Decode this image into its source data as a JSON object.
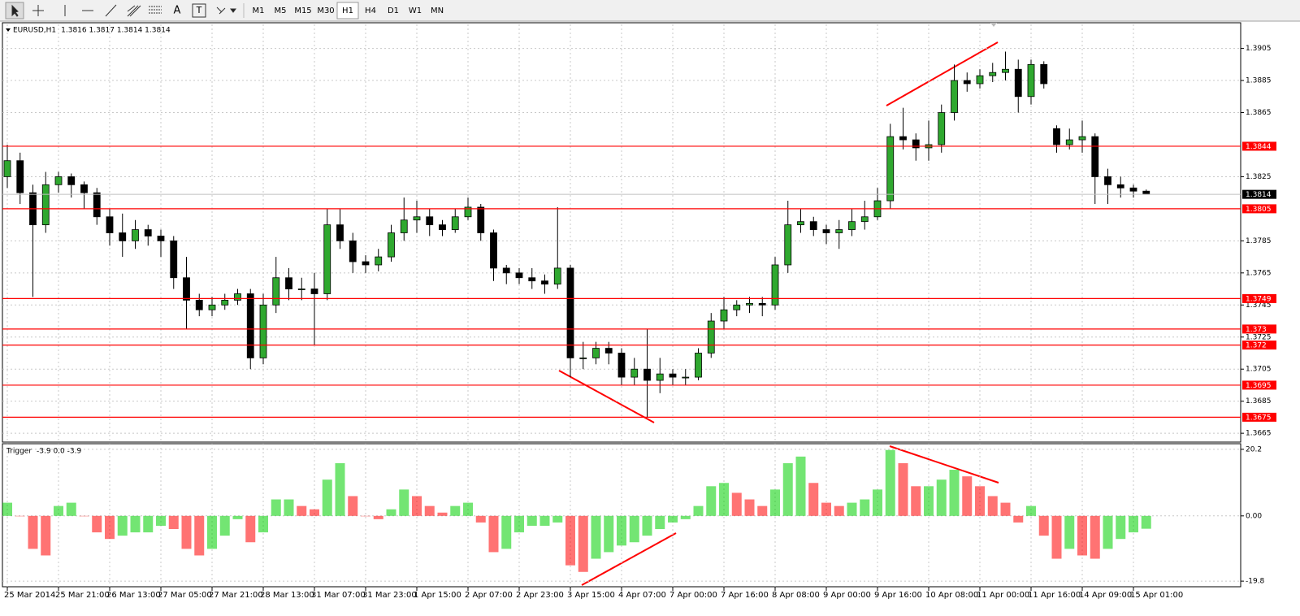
{
  "toolbar": {
    "text_tool": "A",
    "label_tool": "T",
    "timeframes": [
      "M1",
      "M5",
      "M15",
      "M30",
      "H1",
      "H4",
      "D1",
      "W1",
      "MN"
    ]
  },
  "chart_data": [
    {
      "type": "candlestick",
      "title": "EURUSD,H1",
      "header_text": "1.3816 1.3817 1.3814 1.3814",
      "time_labels": [
        "25 Mar 2014",
        "25 Mar 21:00",
        "26 Mar 13:00",
        "27 Mar 05:00",
        "27 Mar 21:00",
        "28 Mar 13:00",
        "31 Mar 07:00",
        "31 Mar 23:00",
        "1 Apr 15:00",
        "2 Apr 07:00",
        "2 Apr 23:00",
        "3 Apr 15:00",
        "4 Apr 07:00",
        "7 Apr 00:00",
        "7 Apr 16:00",
        "8 Apr 08:00",
        "9 Apr 00:00",
        "9 Apr 16:00",
        "10 Apr 08:00",
        "11 Apr 00:00",
        "11 Apr 16:00",
        "14 Apr 09:00",
        "15 Apr 01:00"
      ],
      "open": [
        1.3825,
        1.3835,
        1.3815,
        1.3795,
        1.382,
        1.3825,
        1.382,
        1.3815,
        1.38,
        1.379,
        1.3785,
        1.3792,
        1.3788,
        1.3785,
        1.3762,
        1.3748,
        1.3742,
        1.3745,
        1.3748,
        1.3752,
        1.3712,
        1.3745,
        1.3762,
        1.3755,
        1.3755,
        1.3752,
        1.3795,
        1.3785,
        1.3772,
        1.377,
        1.3775,
        1.379,
        1.3798,
        1.38,
        1.3795,
        1.3792,
        1.38,
        1.3806,
        1.379,
        1.3768,
        1.3765,
        1.3762,
        1.376,
        1.3758,
        1.3768,
        1.3712,
        1.3712,
        1.3718,
        1.3715,
        1.37,
        1.3705,
        1.3698,
        1.3702,
        1.37,
        1.37,
        1.3715,
        1.3735,
        1.3742,
        1.3745,
        1.3746,
        1.3745,
        1.377,
        1.3795,
        1.3797,
        1.3792,
        1.379,
        1.3792,
        1.3797,
        1.38,
        1.381,
        1.385,
        1.3848,
        1.3843,
        1.3845,
        1.3865,
        1.3885,
        1.3883,
        1.3888,
        1.389,
        1.3892,
        1.3875,
        1.3895,
        1.3855,
        1.3845,
        1.3848,
        1.385,
        1.3825,
        1.382,
        1.3818,
        1.3816
      ],
      "high": [
        1.3845,
        1.384,
        1.382,
        1.3828,
        1.3828,
        1.3827,
        1.3822,
        1.3818,
        1.3805,
        1.3802,
        1.3798,
        1.3795,
        1.3792,
        1.3788,
        1.3775,
        1.3752,
        1.375,
        1.3752,
        1.3755,
        1.3755,
        1.3752,
        1.3775,
        1.3768,
        1.3762,
        1.3765,
        1.3805,
        1.3805,
        1.379,
        1.3776,
        1.378,
        1.3795,
        1.3812,
        1.381,
        1.3805,
        1.3798,
        1.3805,
        1.3812,
        1.3808,
        1.3792,
        1.377,
        1.3768,
        1.3768,
        1.3764,
        1.3806,
        1.377,
        1.3722,
        1.3722,
        1.3722,
        1.3718,
        1.3712,
        1.373,
        1.3712,
        1.3705,
        1.3705,
        1.3718,
        1.374,
        1.375,
        1.3748,
        1.375,
        1.375,
        1.3775,
        1.381,
        1.3805,
        1.38,
        1.3795,
        1.3798,
        1.3805,
        1.381,
        1.3818,
        1.3858,
        1.3868,
        1.3852,
        1.386,
        1.387,
        1.3895,
        1.389,
        1.3892,
        1.3896,
        1.3903,
        1.3898,
        1.3898,
        1.3897,
        1.3857,
        1.3855,
        1.386,
        1.3852,
        1.383,
        1.3825,
        1.382,
        1.3817
      ],
      "low": [
        1.3818,
        1.3808,
        1.375,
        1.379,
        1.3815,
        1.3812,
        1.3805,
        1.3795,
        1.3782,
        1.3775,
        1.378,
        1.3782,
        1.3775,
        1.3755,
        1.373,
        1.3738,
        1.3738,
        1.3742,
        1.3745,
        1.3705,
        1.3708,
        1.374,
        1.3748,
        1.3748,
        1.372,
        1.3748,
        1.378,
        1.3765,
        1.3765,
        1.3766,
        1.3772,
        1.3785,
        1.379,
        1.3788,
        1.3788,
        1.379,
        1.3798,
        1.3785,
        1.376,
        1.3758,
        1.3758,
        1.3755,
        1.3752,
        1.3755,
        1.37,
        1.3705,
        1.3708,
        1.3708,
        1.3695,
        1.3695,
        1.3675,
        1.369,
        1.3695,
        1.3695,
        1.3698,
        1.3712,
        1.373,
        1.3738,
        1.374,
        1.3738,
        1.3742,
        1.3765,
        1.379,
        1.3788,
        1.3783,
        1.378,
        1.3788,
        1.3792,
        1.3798,
        1.3805,
        1.3842,
        1.3835,
        1.3835,
        1.384,
        1.386,
        1.3878,
        1.388,
        1.3884,
        1.3885,
        1.3865,
        1.387,
        1.388,
        1.384,
        1.3842,
        1.384,
        1.3808,
        1.3808,
        1.3812,
        1.3812,
        1.3814
      ],
      "close": [
        1.3835,
        1.3815,
        1.3795,
        1.382,
        1.3825,
        1.382,
        1.3815,
        1.38,
        1.379,
        1.3785,
        1.3792,
        1.3788,
        1.3785,
        1.3762,
        1.3748,
        1.3742,
        1.3745,
        1.3748,
        1.3752,
        1.3712,
        1.3745,
        1.3762,
        1.3755,
        1.3755,
        1.3752,
        1.3795,
        1.3785,
        1.3772,
        1.377,
        1.3775,
        1.379,
        1.3798,
        1.38,
        1.3795,
        1.3792,
        1.38,
        1.3806,
        1.379,
        1.3768,
        1.3765,
        1.3762,
        1.376,
        1.3758,
        1.3768,
        1.3712,
        1.3712,
        1.3718,
        1.3715,
        1.37,
        1.3705,
        1.3698,
        1.3702,
        1.37,
        1.37,
        1.3715,
        1.3735,
        1.3742,
        1.3745,
        1.3746,
        1.3745,
        1.377,
        1.3795,
        1.3797,
        1.3792,
        1.379,
        1.3792,
        1.3797,
        1.38,
        1.381,
        1.385,
        1.3848,
        1.3843,
        1.3845,
        1.3865,
        1.3885,
        1.3883,
        1.3888,
        1.389,
        1.3892,
        1.3875,
        1.3895,
        1.3883,
        1.3845,
        1.3848,
        1.385,
        1.3825,
        1.382,
        1.3818,
        1.3816,
        1.3814
      ],
      "up_color": "#2fa82f",
      "down_color": "#000000",
      "levels": [
        1.3844,
        1.3805,
        1.3749,
        1.373,
        1.372,
        1.3695,
        1.3675
      ],
      "level_color": "#ff0000",
      "last_price": 1.3814,
      "ylim": [
        1.366,
        1.392
      ],
      "yticks": [
        1.3905,
        1.3885,
        1.3865,
        1.3825,
        1.3785,
        1.3765,
        1.3745,
        1.3725,
        1.3705,
        1.3685,
        1.3665
      ],
      "grid": true
    },
    {
      "type": "histogram",
      "title": "Trigger",
      "header_text": "-3.9 0.0 -3.9",
      "values": [
        4,
        0,
        -10,
        -12,
        3,
        4,
        0,
        -5,
        -7,
        -6,
        -5,
        -5,
        -3,
        -4,
        -10,
        -12,
        -10,
        -6,
        -1,
        -8,
        -5,
        5,
        5,
        3,
        2,
        11,
        16,
        6,
        0,
        -1,
        2,
        8,
        6,
        3,
        1,
        3,
        4,
        -2,
        -11,
        -10,
        -5,
        -3,
        -3,
        -2,
        -15,
        -17,
        -13,
        -11,
        -9,
        -8,
        -6,
        -4,
        -2,
        -1,
        3,
        9,
        10,
        7,
        5,
        3,
        8,
        16,
        18,
        10,
        4,
        3,
        4,
        5,
        8,
        20,
        16,
        9,
        9,
        11,
        14,
        12,
        9,
        6,
        4,
        -2,
        3,
        -6,
        -13,
        -10,
        -12,
        -13,
        -10,
        -7,
        -5,
        -3.9
      ],
      "rising_color": "#00d000",
      "falling_color": "#ff0000",
      "ylim": [
        -21.5,
        21.9
      ],
      "yticks": [
        20.2,
        {
          "value": 0,
          "label": "0.00"
        },
        -19.8
      ],
      "grid": true
    }
  ]
}
